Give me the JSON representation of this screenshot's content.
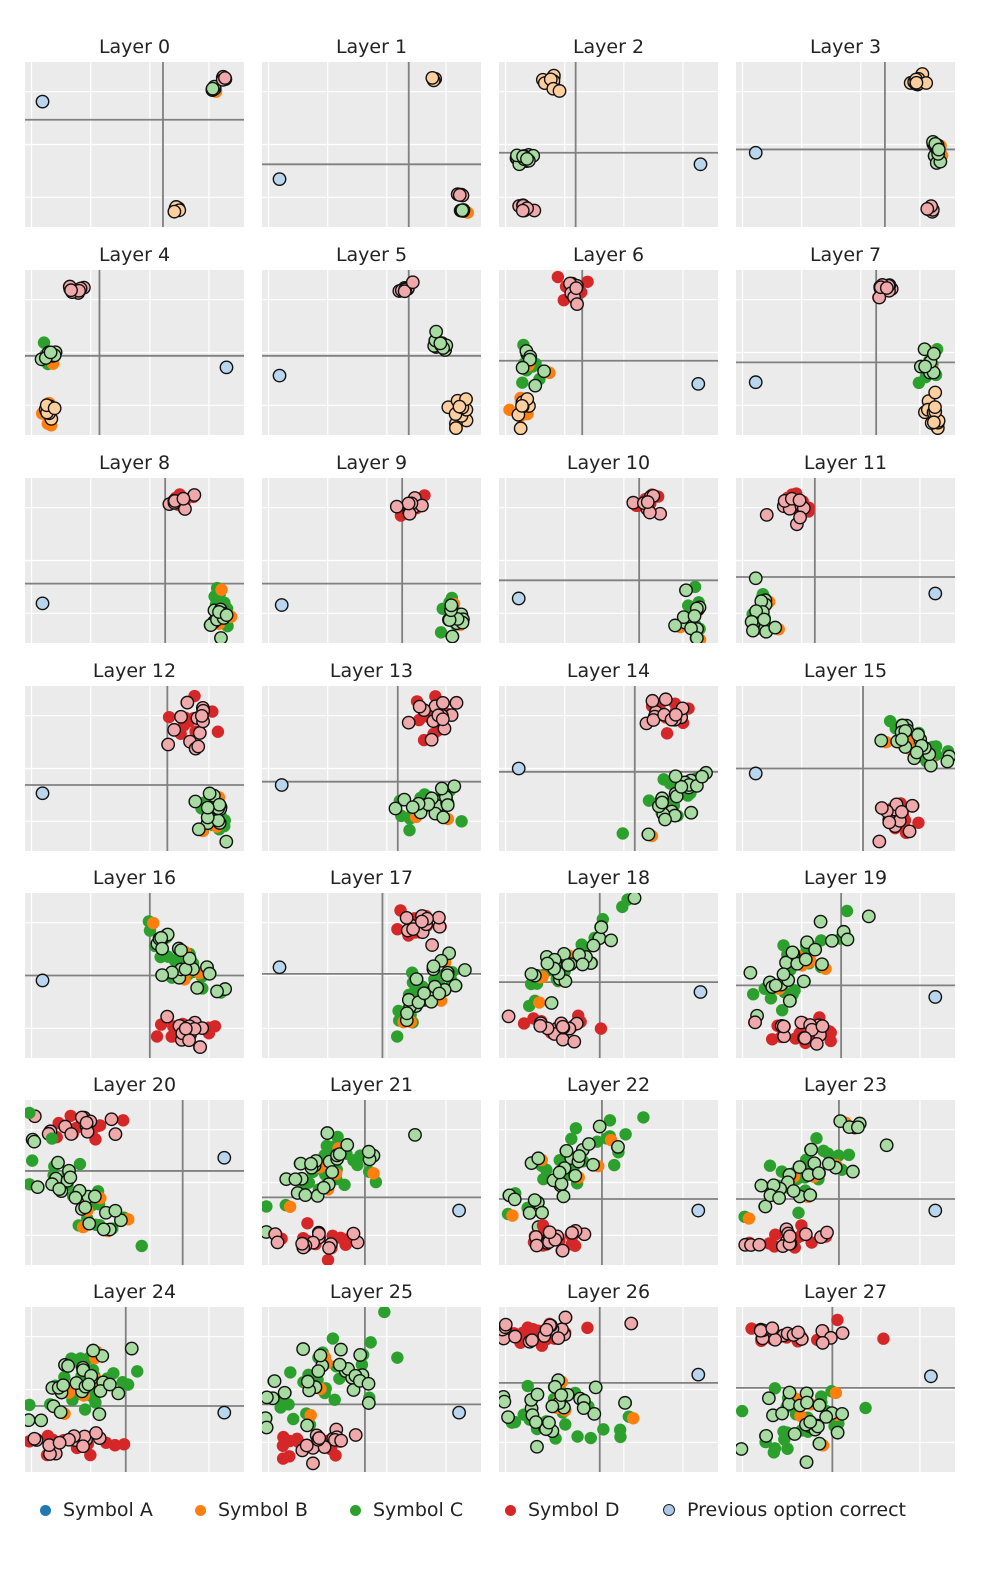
{
  "chart_data": {
    "type": "scatter",
    "grid": true,
    "legend_placement": "bottom",
    "panels": [
      {
        "title": "Layer 0",
        "vline": 0.63,
        "hline": 0.35,
        "clusters": [
          {
            "kind": "A",
            "x": 0.08,
            "y": 0.24,
            "n": 1,
            "sx": 0,
            "sy": 0
          },
          {
            "kind": "C",
            "x": 0.86,
            "y": 0.17,
            "n": 6,
            "sx": 0.01,
            "sy": 0.01
          },
          {
            "kind": "D",
            "x": 0.91,
            "y": 0.1,
            "n": 6,
            "sx": 0.01,
            "sy": 0.01
          },
          {
            "kind": "B",
            "x": 0.7,
            "y": 0.89,
            "n": 6,
            "sx": 0.01,
            "sy": 0.01
          }
        ]
      },
      {
        "title": "Layer 1",
        "vline": 0.67,
        "hline": 0.62,
        "clusters": [
          {
            "kind": "B",
            "x": 0.78,
            "y": 0.1,
            "n": 4,
            "sx": 0.005,
            "sy": 0.005
          },
          {
            "kind": "A",
            "x": 0.08,
            "y": 0.71,
            "n": 1,
            "sx": 0,
            "sy": 0
          },
          {
            "kind": "D",
            "x": 0.9,
            "y": 0.8,
            "n": 5,
            "sx": 0.005,
            "sy": 0.005
          },
          {
            "kind": "C",
            "x": 0.91,
            "y": 0.9,
            "n": 5,
            "sx": 0.005,
            "sy": 0.005
          }
        ]
      },
      {
        "title": "Layer 2",
        "vline": 0.35,
        "hline": 0.55,
        "clusters": [
          {
            "kind": "B",
            "x": 0.23,
            "y": 0.12,
            "n": 12,
            "sx": 0.025,
            "sy": 0.025
          },
          {
            "kind": "C",
            "x": 0.11,
            "y": 0.58,
            "n": 12,
            "sx": 0.025,
            "sy": 0.012
          },
          {
            "kind": "D",
            "x": 0.11,
            "y": 0.88,
            "n": 10,
            "sx": 0.02,
            "sy": 0.015
          },
          {
            "kind": "A",
            "x": 0.92,
            "y": 0.62,
            "n": 1,
            "sx": 0,
            "sy": 0
          }
        ]
      },
      {
        "title": "Layer 3",
        "vline": 0.68,
        "hline": 0.53,
        "clusters": [
          {
            "kind": "B",
            "x": 0.83,
            "y": 0.12,
            "n": 10,
            "sx": 0.02,
            "sy": 0.025
          },
          {
            "kind": "A",
            "x": 0.09,
            "y": 0.55,
            "n": 1,
            "sx": 0,
            "sy": 0
          },
          {
            "kind": "C",
            "x": 0.91,
            "y": 0.53,
            "n": 12,
            "sx": 0.01,
            "sy": 0.04
          },
          {
            "kind": "D",
            "x": 0.89,
            "y": 0.89,
            "n": 8,
            "sx": 0.015,
            "sy": 0.01
          }
        ]
      },
      {
        "title": "Layer 4",
        "vline": 0.34,
        "hline": 0.52,
        "clusters": [
          {
            "kind": "D",
            "x": 0.23,
            "y": 0.12,
            "n": 10,
            "sx": 0.02,
            "sy": 0.015
          },
          {
            "kind": "C",
            "x": 0.11,
            "y": 0.53,
            "n": 14,
            "sx": 0.02,
            "sy": 0.04
          },
          {
            "kind": "B",
            "x": 0.1,
            "y": 0.84,
            "n": 14,
            "sx": 0.02,
            "sy": 0.04
          },
          {
            "kind": "A",
            "x": 0.92,
            "y": 0.59,
            "n": 1,
            "sx": 0,
            "sy": 0
          }
        ]
      },
      {
        "title": "Layer 5",
        "vline": 0.67,
        "hline": 0.52,
        "clusters": [
          {
            "kind": "D",
            "x": 0.66,
            "y": 0.11,
            "n": 8,
            "sx": 0.015,
            "sy": 0.015
          },
          {
            "kind": "C",
            "x": 0.81,
            "y": 0.46,
            "n": 12,
            "sx": 0.02,
            "sy": 0.035
          },
          {
            "kind": "B",
            "x": 0.9,
            "y": 0.86,
            "n": 12,
            "sx": 0.02,
            "sy": 0.04
          },
          {
            "kind": "A",
            "x": 0.08,
            "y": 0.64,
            "n": 1,
            "sx": 0,
            "sy": 0
          }
        ]
      },
      {
        "title": "Layer 6",
        "vline": 0.38,
        "hline": 0.55,
        "clusters": [
          {
            "kind": "D",
            "x": 0.35,
            "y": 0.13,
            "n": 14,
            "sx": 0.03,
            "sy": 0.025
          },
          {
            "kind": "C",
            "x": 0.14,
            "y": 0.56,
            "n": 14,
            "sx": 0.025,
            "sy": 0.06
          },
          {
            "kind": "B",
            "x": 0.1,
            "y": 0.85,
            "n": 14,
            "sx": 0.025,
            "sy": 0.06
          },
          {
            "kind": "A",
            "x": 0.91,
            "y": 0.69,
            "n": 1,
            "sx": 0,
            "sy": 0
          }
        ]
      },
      {
        "title": "Layer 7",
        "vline": 0.64,
        "hline": 0.56,
        "clusters": [
          {
            "kind": "D",
            "x": 0.67,
            "y": 0.11,
            "n": 10,
            "sx": 0.025,
            "sy": 0.02
          },
          {
            "kind": "C",
            "x": 0.88,
            "y": 0.56,
            "n": 14,
            "sx": 0.02,
            "sy": 0.06
          },
          {
            "kind": "B",
            "x": 0.9,
            "y": 0.86,
            "n": 12,
            "sx": 0.02,
            "sy": 0.06
          },
          {
            "kind": "A",
            "x": 0.09,
            "y": 0.68,
            "n": 1,
            "sx": 0,
            "sy": 0
          }
        ]
      },
      {
        "title": "Layer 8",
        "vline": 0.64,
        "hline": 0.64,
        "clusters": [
          {
            "kind": "D",
            "x": 0.71,
            "y": 0.13,
            "n": 16,
            "sx": 0.03,
            "sy": 0.03
          },
          {
            "kind": "C",
            "x": 0.89,
            "y": 0.82,
            "n": 20,
            "sx": 0.02,
            "sy": 0.07
          },
          {
            "kind": "A",
            "x": 0.08,
            "y": 0.76,
            "n": 1,
            "sx": 0,
            "sy": 0
          }
        ]
      },
      {
        "title": "Layer 9",
        "vline": 0.64,
        "hline": 0.64,
        "clusters": [
          {
            "kind": "D",
            "x": 0.69,
            "y": 0.16,
            "n": 16,
            "sx": 0.03,
            "sy": 0.03
          },
          {
            "kind": "C",
            "x": 0.87,
            "y": 0.84,
            "n": 22,
            "sx": 0.03,
            "sy": 0.06
          },
          {
            "kind": "A",
            "x": 0.09,
            "y": 0.77,
            "n": 1,
            "sx": 0,
            "sy": 0
          }
        ]
      },
      {
        "title": "Layer 10",
        "vline": 0.64,
        "hline": 0.62,
        "clusters": [
          {
            "kind": "D",
            "x": 0.69,
            "y": 0.16,
            "n": 16,
            "sx": 0.03,
            "sy": 0.04
          },
          {
            "kind": "C",
            "x": 0.89,
            "y": 0.82,
            "n": 22,
            "sx": 0.025,
            "sy": 0.08
          },
          {
            "kind": "A",
            "x": 0.09,
            "y": 0.73,
            "n": 1,
            "sx": 0,
            "sy": 0
          }
        ]
      },
      {
        "title": "Layer 11",
        "vline": 0.36,
        "hline": 0.6,
        "clusters": [
          {
            "kind": "D",
            "x": 0.27,
            "y": 0.18,
            "n": 20,
            "sx": 0.04,
            "sy": 0.05
          },
          {
            "kind": "C",
            "x": 0.12,
            "y": 0.8,
            "n": 26,
            "sx": 0.03,
            "sy": 0.09
          },
          {
            "kind": "A",
            "x": 0.91,
            "y": 0.7,
            "n": 1,
            "sx": 0,
            "sy": 0
          }
        ]
      },
      {
        "title": "Layer 12",
        "vline": 0.65,
        "hline": 0.6,
        "clusters": [
          {
            "kind": "D",
            "x": 0.76,
            "y": 0.22,
            "n": 26,
            "sx": 0.05,
            "sy": 0.07
          },
          {
            "kind": "C",
            "x": 0.87,
            "y": 0.77,
            "n": 32,
            "sx": 0.04,
            "sy": 0.08
          },
          {
            "kind": "A",
            "x": 0.08,
            "y": 0.65,
            "n": 1,
            "sx": 0,
            "sy": 0
          }
        ]
      },
      {
        "title": "Layer 13",
        "vline": 0.62,
        "hline": 0.58,
        "clusters": [
          {
            "kind": "D",
            "x": 0.79,
            "y": 0.19,
            "n": 26,
            "sx": 0.06,
            "sy": 0.06
          },
          {
            "kind": "C",
            "x": 0.77,
            "y": 0.72,
            "n": 40,
            "sx": 0.07,
            "sy": 0.05,
            "rot": -0.6
          },
          {
            "kind": "A",
            "x": 0.09,
            "y": 0.6,
            "n": 1,
            "sx": 0,
            "sy": 0
          }
        ]
      },
      {
        "title": "Layer 14",
        "vline": 0.62,
        "hline": 0.52,
        "clusters": [
          {
            "kind": "D",
            "x": 0.77,
            "y": 0.17,
            "n": 24,
            "sx": 0.05,
            "sy": 0.05
          },
          {
            "kind": "C",
            "x": 0.8,
            "y": 0.68,
            "n": 40,
            "sx": 0.1,
            "sy": 0.04,
            "rot": -1.0
          },
          {
            "kind": "A",
            "x": 0.09,
            "y": 0.5,
            "n": 1,
            "sx": 0,
            "sy": 0
          }
        ]
      },
      {
        "title": "Layer 15",
        "vline": 0.58,
        "hline": 0.5,
        "clusters": [
          {
            "kind": "C",
            "x": 0.79,
            "y": 0.3,
            "n": 40,
            "sx": 0.11,
            "sy": 0.04,
            "rot": 0.9
          },
          {
            "kind": "D",
            "x": 0.76,
            "y": 0.83,
            "n": 24,
            "sx": 0.05,
            "sy": 0.05
          },
          {
            "kind": "A",
            "x": 0.09,
            "y": 0.53,
            "n": 1,
            "sx": 0,
            "sy": 0
          }
        ]
      },
      {
        "title": "Layer 16",
        "vline": 0.57,
        "hline": 0.5,
        "clusters": [
          {
            "kind": "C",
            "x": 0.72,
            "y": 0.4,
            "n": 42,
            "sx": 0.13,
            "sy": 0.04,
            "rot": 0.9
          },
          {
            "kind": "D",
            "x": 0.76,
            "y": 0.83,
            "n": 24,
            "sx": 0.07,
            "sy": 0.04
          },
          {
            "kind": "A",
            "x": 0.08,
            "y": 0.53,
            "n": 1,
            "sx": 0,
            "sy": 0
          }
        ]
      },
      {
        "title": "Layer 17",
        "vline": 0.55,
        "hline": 0.49,
        "clusters": [
          {
            "kind": "D",
            "x": 0.72,
            "y": 0.2,
            "n": 24,
            "sx": 0.07,
            "sy": 0.04
          },
          {
            "kind": "C",
            "x": 0.72,
            "y": 0.63,
            "n": 44,
            "sx": 0.14,
            "sy": 0.05,
            "rot": -1.0
          },
          {
            "kind": "A",
            "x": 0.08,
            "y": 0.45,
            "n": 1,
            "sx": 0,
            "sy": 0
          }
        ]
      },
      {
        "title": "Layer 18",
        "vline": 0.46,
        "hline": 0.54,
        "clusters": [
          {
            "kind": "C",
            "x": 0.32,
            "y": 0.42,
            "n": 46,
            "sx": 0.17,
            "sy": 0.05,
            "rot": -0.9
          },
          {
            "kind": "D",
            "x": 0.3,
            "y": 0.82,
            "n": 26,
            "sx": 0.09,
            "sy": 0.04
          },
          {
            "kind": "A",
            "x": 0.92,
            "y": 0.6,
            "n": 1,
            "sx": 0,
            "sy": 0
          }
        ]
      },
      {
        "title": "Layer 19",
        "vline": 0.48,
        "hline": 0.56,
        "clusters": [
          {
            "kind": "C",
            "x": 0.3,
            "y": 0.42,
            "n": 46,
            "sx": 0.17,
            "sy": 0.05,
            "rot": -0.9
          },
          {
            "kind": "D",
            "x": 0.3,
            "y": 0.84,
            "n": 26,
            "sx": 0.09,
            "sy": 0.04
          },
          {
            "kind": "A",
            "x": 0.91,
            "y": 0.63,
            "n": 1,
            "sx": 0,
            "sy": 0
          }
        ]
      },
      {
        "title": "Layer 20",
        "vline": 0.72,
        "hline": 0.43,
        "clusters": [
          {
            "kind": "D",
            "x": 0.24,
            "y": 0.16,
            "n": 26,
            "sx": 0.09,
            "sy": 0.04
          },
          {
            "kind": "C",
            "x": 0.25,
            "y": 0.55,
            "n": 46,
            "sx": 0.2,
            "sy": 0.05,
            "rot": 0.9
          },
          {
            "kind": "A",
            "x": 0.91,
            "y": 0.35,
            "n": 1,
            "sx": 0,
            "sy": 0
          }
        ]
      },
      {
        "title": "Layer 21",
        "vline": 0.47,
        "hline": 0.59,
        "clusters": [
          {
            "kind": "C",
            "x": 0.31,
            "y": 0.42,
            "n": 50,
            "sx": 0.18,
            "sy": 0.07,
            "rot": -0.8
          },
          {
            "kind": "D",
            "x": 0.25,
            "y": 0.84,
            "n": 26,
            "sx": 0.09,
            "sy": 0.04
          },
          {
            "kind": "A",
            "x": 0.9,
            "y": 0.67,
            "n": 1,
            "sx": 0,
            "sy": 0
          }
        ]
      },
      {
        "title": "Layer 22",
        "vline": 0.47,
        "hline": 0.6,
        "clusters": [
          {
            "kind": "C",
            "x": 0.32,
            "y": 0.44,
            "n": 50,
            "sx": 0.18,
            "sy": 0.08,
            "rot": -0.8
          },
          {
            "kind": "D",
            "x": 0.25,
            "y": 0.84,
            "n": 26,
            "sx": 0.09,
            "sy": 0.04
          },
          {
            "kind": "A",
            "x": 0.91,
            "y": 0.67,
            "n": 1,
            "sx": 0,
            "sy": 0
          }
        ]
      },
      {
        "title": "Layer 23",
        "vline": 0.47,
        "hline": 0.6,
        "clusters": [
          {
            "kind": "C",
            "x": 0.32,
            "y": 0.44,
            "n": 50,
            "sx": 0.18,
            "sy": 0.08,
            "rot": -0.8
          },
          {
            "kind": "D",
            "x": 0.25,
            "y": 0.84,
            "n": 26,
            "sx": 0.09,
            "sy": 0.04
          },
          {
            "kind": "A",
            "x": 0.91,
            "y": 0.67,
            "n": 1,
            "sx": 0,
            "sy": 0
          }
        ]
      },
      {
        "title": "Layer 24",
        "vline": 0.46,
        "hline": 0.6,
        "clusters": [
          {
            "kind": "C",
            "x": 0.28,
            "y": 0.44,
            "n": 52,
            "sx": 0.18,
            "sy": 0.09,
            "rot": -0.8
          },
          {
            "kind": "D",
            "x": 0.27,
            "y": 0.84,
            "n": 28,
            "sx": 0.11,
            "sy": 0.04
          },
          {
            "kind": "A",
            "x": 0.91,
            "y": 0.64,
            "n": 1,
            "sx": 0,
            "sy": 0
          }
        ]
      },
      {
        "title": "Layer 25",
        "vline": 0.47,
        "hline": 0.59,
        "clusters": [
          {
            "kind": "C",
            "x": 0.29,
            "y": 0.44,
            "n": 52,
            "sx": 0.18,
            "sy": 0.09,
            "rot": -0.8
          },
          {
            "kind": "D",
            "x": 0.27,
            "y": 0.83,
            "n": 28,
            "sx": 0.11,
            "sy": 0.04
          },
          {
            "kind": "A",
            "x": 0.9,
            "y": 0.64,
            "n": 1,
            "sx": 0,
            "sy": 0
          }
        ]
      },
      {
        "title": "Layer 26",
        "vline": 0.46,
        "hline": 0.46,
        "clusters": [
          {
            "kind": "D",
            "x": 0.24,
            "y": 0.15,
            "n": 34,
            "sx": 0.14,
            "sy": 0.04
          },
          {
            "kind": "C",
            "x": 0.24,
            "y": 0.65,
            "n": 52,
            "sx": 0.15,
            "sy": 0.1
          },
          {
            "kind": "A",
            "x": 0.91,
            "y": 0.41,
            "n": 1,
            "sx": 0,
            "sy": 0
          }
        ]
      },
      {
        "title": "Layer 27",
        "vline": 0.44,
        "hline": 0.49,
        "clusters": [
          {
            "kind": "D",
            "x": 0.23,
            "y": 0.16,
            "n": 30,
            "sx": 0.13,
            "sy": 0.03
          },
          {
            "kind": "C",
            "x": 0.3,
            "y": 0.71,
            "n": 48,
            "sx": 0.13,
            "sy": 0.1
          },
          {
            "kind": "A",
            "x": 0.89,
            "y": 0.42,
            "n": 1,
            "sx": 0,
            "sy": 0
          }
        ]
      }
    ]
  },
  "legend": {
    "items": [
      {
        "label": "Symbol A",
        "color": "#1f77b4",
        "type": "dot"
      },
      {
        "label": "Symbol B",
        "color": "#ff7f0e",
        "type": "dot"
      },
      {
        "label": "Symbol C",
        "color": "#2ca02c",
        "type": "dot"
      },
      {
        "label": "Symbol D",
        "color": "#d62728",
        "type": "dot"
      },
      {
        "label": "Previous option correct",
        "color": "#aec7e8",
        "type": "outlined"
      }
    ]
  },
  "colors": {
    "A": "#1f77b4",
    "B": "#ff7f0e",
    "C": "#2ca02c",
    "D": "#d62728",
    "A_prev": "#b9d6ee",
    "B_prev": "#fdcf9f",
    "C_prev": "#a8dba2",
    "D_prev": "#efa9ab",
    "panel_bg": "#ebebeb",
    "grid": "#ffffff",
    "axis": "#808080"
  }
}
